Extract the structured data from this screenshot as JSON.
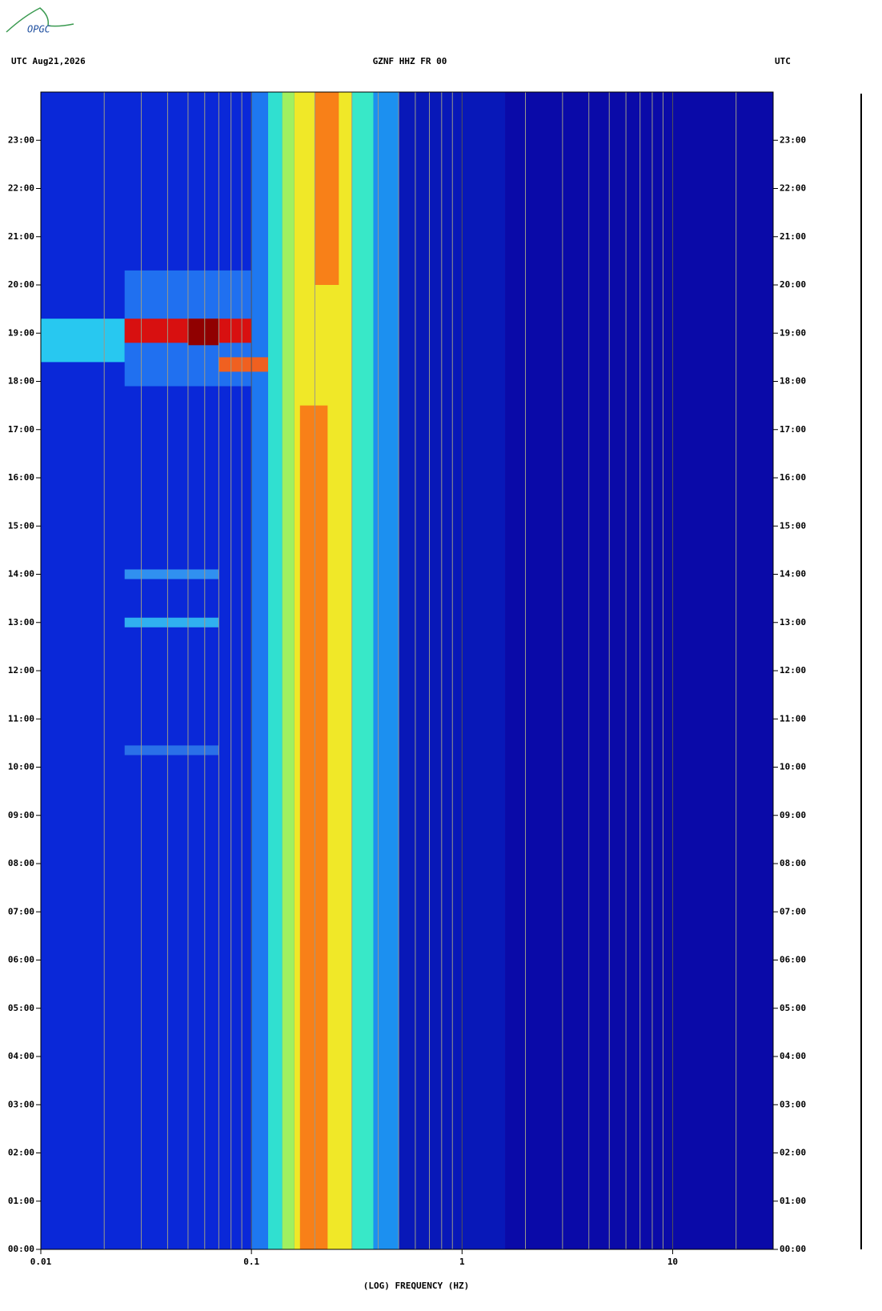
{
  "chart_data": {
    "type": "spectrogram",
    "logo": "OPGC",
    "title_left": "UTC  Aug21,2026",
    "title": "GZNF HHZ FR 00",
    "title_right": "UTC",
    "xlabel": "(LOG) FREQUENCY (HZ)",
    "xscale": "log",
    "xlim": [
      0.01,
      30
    ],
    "xticks": [
      0.01,
      0.1,
      1,
      10
    ],
    "minor_xticks": [
      0.02,
      0.03,
      0.04,
      0.05,
      0.06,
      0.07,
      0.08,
      0.09,
      0.2,
      0.3,
      0.4,
      0.5,
      0.6,
      0.7,
      0.8,
      0.9,
      2,
      3,
      4,
      5,
      6,
      7,
      8,
      9,
      20
    ],
    "ylim": [
      0,
      24
    ],
    "yticks": [
      {
        "value": 0,
        "label": "00:00"
      },
      {
        "value": 1,
        "label": "01:00"
      },
      {
        "value": 2,
        "label": "02:00"
      },
      {
        "value": 3,
        "label": "03:00"
      },
      {
        "value": 4,
        "label": "04:00"
      },
      {
        "value": 5,
        "label": "05:00"
      },
      {
        "value": 6,
        "label": "06:00"
      },
      {
        "value": 7,
        "label": "07:00"
      },
      {
        "value": 8,
        "label": "08:00"
      },
      {
        "value": 9,
        "label": "09:00"
      },
      {
        "value": 10,
        "label": "10:00"
      },
      {
        "value": 11,
        "label": "11:00"
      },
      {
        "value": 12,
        "label": "12:00"
      },
      {
        "value": 13,
        "label": "13:00"
      },
      {
        "value": 14,
        "label": "14:00"
      },
      {
        "value": 15,
        "label": "15:00"
      },
      {
        "value": 16,
        "label": "16:00"
      },
      {
        "value": 17,
        "label": "17:00"
      },
      {
        "value": 18,
        "label": "18:00"
      },
      {
        "value": 19,
        "label": "19:00"
      },
      {
        "value": 20,
        "label": "20:00"
      },
      {
        "value": 21,
        "label": "21:00"
      },
      {
        "value": 22,
        "label": "22:00"
      },
      {
        "value": 23,
        "label": "23:00"
      }
    ],
    "regions": [
      {
        "x": [
          0.01,
          0.5
        ],
        "y": [
          0,
          24
        ],
        "color": "#0a28d8"
      },
      {
        "x": [
          0.5,
          1.6
        ],
        "y": [
          0,
          24
        ],
        "color": "#0818b8"
      },
      {
        "x": [
          1.6,
          30
        ],
        "y": [
          0,
          24
        ],
        "color": "#0a0aa8"
      },
      {
        "x": [
          0.1,
          0.12
        ],
        "y": [
          0,
          24
        ],
        "color": "#1e78f0"
      },
      {
        "x": [
          0.12,
          0.14
        ],
        "y": [
          0,
          24
        ],
        "color": "#30e0d0"
      },
      {
        "x": [
          0.14,
          0.16
        ],
        "y": [
          0,
          24
        ],
        "color": "#a0f060"
      },
      {
        "x": [
          0.16,
          0.3
        ],
        "y": [
          0,
          24
        ],
        "color": "#f0e828"
      },
      {
        "x": [
          0.17,
          0.23
        ],
        "y": [
          0,
          17.5
        ],
        "color": "#f88018"
      },
      {
        "x": [
          0.2,
          0.26
        ],
        "y": [
          20,
          24
        ],
        "color": "#f88018"
      },
      {
        "x": [
          0.3,
          0.38
        ],
        "y": [
          0,
          24
        ],
        "color": "#38e8c8"
      },
      {
        "x": [
          0.38,
          0.5
        ],
        "y": [
          0,
          24
        ],
        "color": "#1c90f0"
      },
      {
        "x": [
          0.025,
          0.1
        ],
        "y": [
          17.9,
          20.3
        ],
        "color": "#2070f0"
      },
      {
        "x": [
          0.01,
          0.025
        ],
        "y": [
          18.4,
          19.3
        ],
        "color": "#28c8f0"
      },
      {
        "x": [
          0.025,
          0.1
        ],
        "y": [
          18.8,
          19.3
        ],
        "color": "#d81010"
      },
      {
        "x": [
          0.05,
          0.07
        ],
        "y": [
          18.75,
          19.3
        ],
        "color": "#900000"
      },
      {
        "x": [
          0.07,
          0.12
        ],
        "y": [
          18.2,
          18.5
        ],
        "color": "#f06020"
      },
      {
        "x": [
          0.025,
          0.07
        ],
        "y": [
          12.9,
          13.1
        ],
        "color": "#30b0f0"
      },
      {
        "x": [
          0.025,
          0.07
        ],
        "y": [
          13.9,
          14.1
        ],
        "color": "#3090f0"
      },
      {
        "x": [
          0.025,
          0.07
        ],
        "y": [
          10.25,
          10.45
        ],
        "color": "#2a70e8"
      }
    ]
  }
}
